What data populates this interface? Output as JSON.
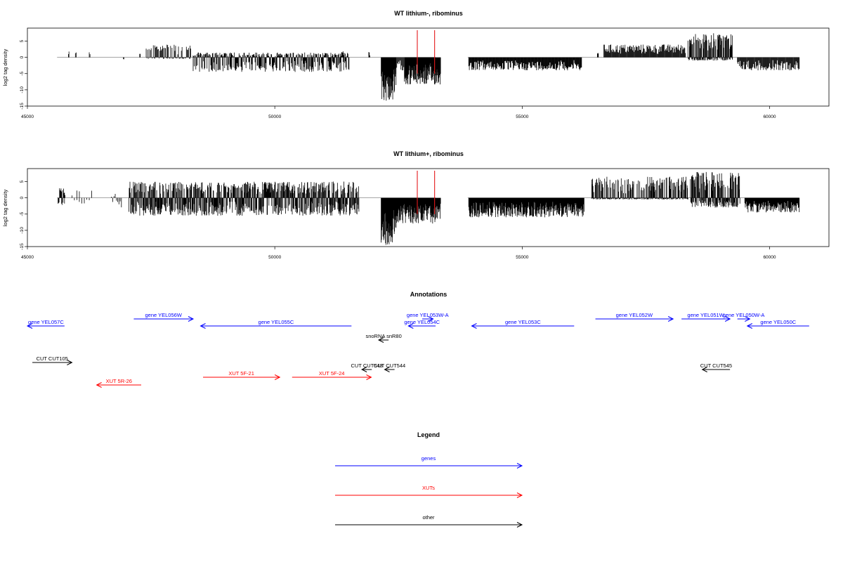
{
  "chart_data": [
    {
      "type": "bar",
      "title": "WT lithium-, ribominus",
      "ylabel": "log2 tag density",
      "xlim": [
        45000,
        61200
      ],
      "ylim": [
        -15,
        9
      ],
      "xticks": [
        "45000",
        "50000",
        "55000",
        "60000"
      ],
      "yticks": [
        "-15",
        "-10",
        "-5",
        "0",
        "5"
      ],
      "marker_positions": [
        52880,
        53230
      ],
      "marker_color": "#e41a1c",
      "bar_color": "#000000",
      "baseline_span": [
        45600,
        53250
      ],
      "coverage": [
        {
          "start": 45830,
          "end": 45840,
          "min": 0,
          "max": 1.8,
          "density": 1.0
        },
        {
          "start": 45970,
          "end": 45985,
          "min": 0,
          "max": 1.6,
          "density": 1.0
        },
        {
          "start": 46250,
          "end": 46265,
          "min": 0,
          "max": 1.7,
          "density": 1.0
        },
        {
          "start": 46940,
          "end": 46950,
          "min": -1.2,
          "max": 0,
          "density": 1.0
        },
        {
          "start": 47270,
          "end": 47280,
          "min": 0,
          "max": 1.2,
          "density": 1.0
        },
        {
          "start": 47400,
          "end": 48300,
          "min": -0.5,
          "max": 4.0,
          "density": 0.45
        },
        {
          "start": 48350,
          "end": 51500,
          "min": -4.5,
          "max": 1.5,
          "density": 0.6
        },
        {
          "start": 51350,
          "end": 51400,
          "min": 0,
          "max": 2.2,
          "density": 1.0
        },
        {
          "start": 51900,
          "end": 51920,
          "min": 0,
          "max": 1.8,
          "density": 1.0
        },
        {
          "start": 52150,
          "end": 52450,
          "min": -13.5,
          "max": 0,
          "density": 0.9
        },
        {
          "start": 52450,
          "end": 52620,
          "min": -4.0,
          "max": 0,
          "density": 0.5
        },
        {
          "start": 52620,
          "end": 53350,
          "min": -8.5,
          "max": 0,
          "density": 0.9
        },
        {
          "start": 53920,
          "end": 56200,
          "min": -4.0,
          "max": 0,
          "density": 0.55
        },
        {
          "start": 56520,
          "end": 56540,
          "min": 0,
          "max": 2.5,
          "density": 1.0
        },
        {
          "start": 56650,
          "end": 58300,
          "min": 0,
          "max": 4.0,
          "density": 0.5
        },
        {
          "start": 58350,
          "end": 59250,
          "min": -1.0,
          "max": 7.5,
          "density": 0.85
        },
        {
          "start": 59350,
          "end": 60600,
          "min": -4.0,
          "max": 0,
          "density": 0.5
        }
      ]
    },
    {
      "type": "bar",
      "title": "WT lithium+, ribominus",
      "ylabel": "log2 tag density",
      "xlim": [
        45000,
        61200
      ],
      "ylim": [
        -15,
        9
      ],
      "xticks": [
        "45000",
        "50000",
        "55000",
        "60000"
      ],
      "yticks": [
        "-15",
        "-10",
        "-5",
        "0",
        "5"
      ],
      "marker_positions": [
        52880,
        53230
      ],
      "marker_color": "#e41a1c",
      "bar_color": "#000000",
      "baseline_span": [
        45600,
        53250
      ],
      "coverage": [
        {
          "start": 45620,
          "end": 45760,
          "min": -2.5,
          "max": 3.0,
          "density": 0.7
        },
        {
          "start": 45900,
          "end": 46300,
          "min": -2.0,
          "max": 2.5,
          "density": 0.15
        },
        {
          "start": 46700,
          "end": 46900,
          "min": -3.0,
          "max": 1.5,
          "density": 0.3
        },
        {
          "start": 47050,
          "end": 51700,
          "min": -5.5,
          "max": 5.0,
          "density": 0.85
        },
        {
          "start": 52150,
          "end": 52450,
          "min": -14.5,
          "max": 0,
          "density": 0.9
        },
        {
          "start": 52450,
          "end": 53350,
          "min": -8.0,
          "max": 0,
          "density": 0.85
        },
        {
          "start": 53920,
          "end": 56250,
          "min": -6.0,
          "max": 0,
          "density": 0.8
        },
        {
          "start": 56400,
          "end": 58350,
          "min": -0.5,
          "max": 6.5,
          "density": 0.85
        },
        {
          "start": 58400,
          "end": 59400,
          "min": -3.0,
          "max": 8.0,
          "density": 0.9
        },
        {
          "start": 59500,
          "end": 60600,
          "min": -4.5,
          "max": 0,
          "density": 0.7
        }
      ]
    }
  ],
  "annotations": {
    "title": "Annotations",
    "xlim": [
      45000,
      61200
    ],
    "features": [
      {
        "label": "gene YEL057C",
        "start": 45000,
        "end": 45750,
        "dir": "left",
        "color": "#0000ff",
        "row": 1
      },
      {
        "label": "gene YEL056W",
        "start": 47150,
        "end": 48350,
        "dir": "right",
        "color": "#0000ff",
        "row": 0
      },
      {
        "label": "gene YEL055C",
        "start": 48500,
        "end": 51550,
        "dir": "left",
        "color": "#0000ff",
        "row": 1
      },
      {
        "label": "gene YEL053W-A",
        "start": 52980,
        "end": 53200,
        "dir": "right",
        "color": "#0000ff",
        "row": 0
      },
      {
        "label": "gene YEL054C",
        "start": 52700,
        "end": 53250,
        "dir": "left",
        "color": "#0000ff",
        "row": 1
      },
      {
        "label": "gene YEL053C",
        "start": 53980,
        "end": 56050,
        "dir": "left",
        "color": "#0000ff",
        "row": 1
      },
      {
        "label": "gene YEL052W",
        "start": 56480,
        "end": 58050,
        "dir": "right",
        "color": "#0000ff",
        "row": 0
      },
      {
        "label": "gene YEL051W",
        "start": 58220,
        "end": 59200,
        "dir": "right",
        "color": "#0000ff",
        "row": 0
      },
      {
        "label": "gene YEL050W-A",
        "start": 59350,
        "end": 59600,
        "dir": "right",
        "color": "#0000ff",
        "row": 0
      },
      {
        "label": "gene YEL050C",
        "start": 59550,
        "end": 60800,
        "dir": "left",
        "color": "#0000ff",
        "row": 1
      },
      {
        "label": "snoRNA snR80",
        "start": 52100,
        "end": 52300,
        "dir": "left",
        "color": "#000000",
        "row": 2
      },
      {
        "label": "CUT CUT105",
        "start": 45100,
        "end": 45900,
        "dir": "right",
        "color": "#000000",
        "row": 3
      },
      {
        "label": "CUT CUT543",
        "start": 51760,
        "end": 51960,
        "dir": "left",
        "color": "#000000",
        "row": 4
      },
      {
        "label": "CUT CUT544",
        "start": 52220,
        "end": 52420,
        "dir": "left",
        "color": "#000000",
        "row": 4
      },
      {
        "label": "CUT CUT545",
        "start": 58640,
        "end": 59200,
        "dir": "left",
        "color": "#000000",
        "row": 4
      },
      {
        "label": "XUT 5R-26",
        "start": 46400,
        "end": 47300,
        "dir": "left",
        "color": "#ff0000",
        "row": 6
      },
      {
        "label": "XUT 5F-21",
        "start": 48550,
        "end": 50100,
        "dir": "right",
        "color": "#ff0000",
        "row": 5
      },
      {
        "label": "XUT 5F-24",
        "start": 50350,
        "end": 51950,
        "dir": "right",
        "color": "#ff0000",
        "row": 5
      }
    ]
  },
  "legend": {
    "title": "Legend",
    "items": [
      {
        "label": "genes",
        "color": "#0000ff"
      },
      {
        "label": "XUTs",
        "color": "#ff0000"
      },
      {
        "label": "other",
        "color": "#000000"
      }
    ]
  }
}
